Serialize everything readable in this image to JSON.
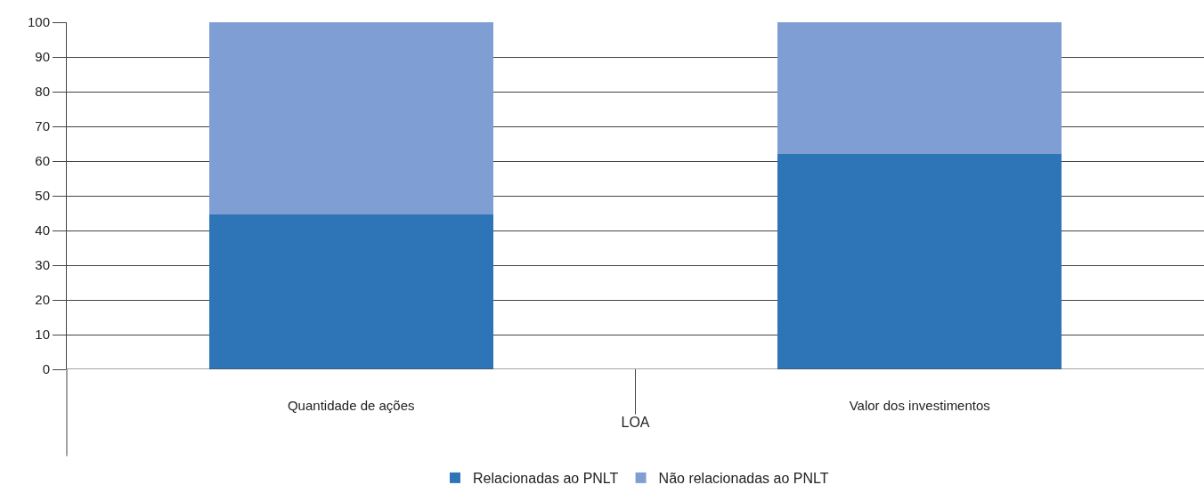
{
  "chart_data": {
    "type": "bar",
    "stacked": true,
    "categories": [
      "Quantidade de ações",
      "Valor dos investimentos"
    ],
    "xlabel": "LOA",
    "series": [
      {
        "name": "Relacionadas ao PNLT",
        "color": "#2e75b8",
        "values": [
          44.6,
          62.1
        ]
      },
      {
        "name": "Não relacionadas ao PNLT",
        "color": "#7f9fd4",
        "values": [
          55.4,
          37.9
        ]
      }
    ],
    "ylim": [
      0,
      100
    ],
    "yticks": [
      0,
      10,
      20,
      30,
      40,
      50,
      60,
      70,
      80,
      90,
      100
    ],
    "grid": "y",
    "legend": "bottom"
  }
}
